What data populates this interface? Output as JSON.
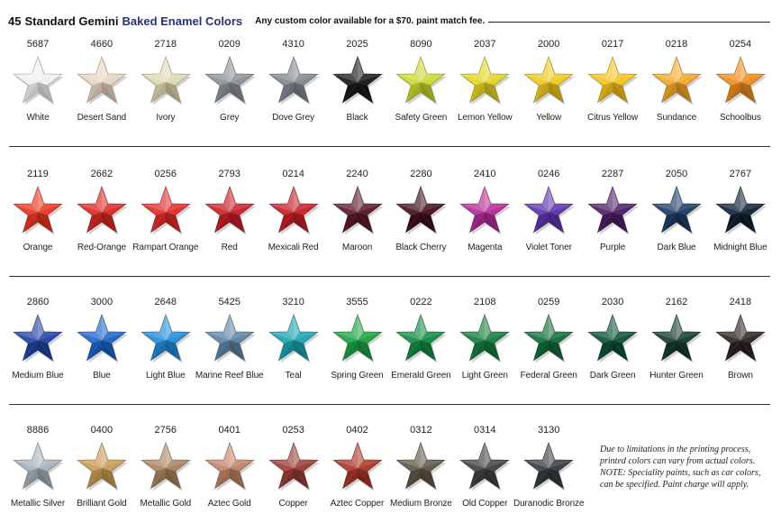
{
  "header": {
    "count": "45",
    "brand": "Standard Gemini",
    "title": "Baked Enamel Colors",
    "note": "Any custom color available for a $70. paint match fee."
  },
  "rows": [
    [
      {
        "code": "5687",
        "name": "White",
        "color": "#eef0f1"
      },
      {
        "code": "4660",
        "name": "Desert Sand",
        "color": "#e6d6c2"
      },
      {
        "code": "2718",
        "name": "Ivory",
        "color": "#ddd8ae"
      },
      {
        "code": "0209",
        "name": "Grey",
        "color": "#8a9096"
      },
      {
        "code": "4310",
        "name": "Dove Grey",
        "color": "#7f868d"
      },
      {
        "code": "2025",
        "name": "Black",
        "color": "#16161a"
      },
      {
        "code": "8090",
        "name": "Safety Green",
        "color": "#c8d82a"
      },
      {
        "code": "2037",
        "name": "Lemon Yellow",
        "color": "#e4d424"
      },
      {
        "code": "2000",
        "name": "Yellow",
        "color": "#f0c81e"
      },
      {
        "code": "0217",
        "name": "Citrus Yellow",
        "color": "#f6c21c"
      },
      {
        "code": "0218",
        "name": "Sundance",
        "color": "#f2a824"
      },
      {
        "code": "0254",
        "name": "Schoolbus",
        "color": "#ee8a18"
      }
    ],
    [
      {
        "code": "2119",
        "name": "Orange",
        "color": "#e8341e"
      },
      {
        "code": "2662",
        "name": "Red-Orange",
        "color": "#d92622"
      },
      {
        "code": "0256",
        "name": "Rampart Orange",
        "color": "#e02a26"
      },
      {
        "code": "2793",
        "name": "Red",
        "color": "#c81c26"
      },
      {
        "code": "0214",
        "name": "Mexicali Red",
        "color": "#c41c22"
      },
      {
        "code": "2240",
        "name": "Maroon",
        "color": "#581826"
      },
      {
        "code": "2280",
        "name": "Black Cherry",
        "color": "#3e0e1a"
      },
      {
        "code": "2410",
        "name": "Magenta",
        "color": "#b42896"
      },
      {
        "code": "0246",
        "name": "Violet Toner",
        "color": "#5a32aa"
      },
      {
        "code": "2287",
        "name": "Purple",
        "color": "#4a1c66"
      },
      {
        "code": "2050",
        "name": "Dark Blue",
        "color": "#1a3a62"
      },
      {
        "code": "2767",
        "name": "Midnight Blue",
        "color": "#0e1e32"
      }
    ],
    [
      {
        "code": "2860",
        "name": "Medium Blue",
        "color": "#1e40a2"
      },
      {
        "code": "3000",
        "name": "Blue",
        "color": "#1a62c8"
      },
      {
        "code": "2648",
        "name": "Light Blue",
        "color": "#1e8ad8"
      },
      {
        "code": "5425",
        "name": "Marine Reef Blue",
        "color": "#5a82a2"
      },
      {
        "code": "3210",
        "name": "Teal",
        "color": "#18a2b2"
      },
      {
        "code": "3555",
        "name": "Spring Green",
        "color": "#18a040"
      },
      {
        "code": "0222",
        "name": "Emerald Green",
        "color": "#108a42"
      },
      {
        "code": "2108",
        "name": "Light Green",
        "color": "#147a3c"
      },
      {
        "code": "0259",
        "name": "Federal Green",
        "color": "#0e6a38"
      },
      {
        "code": "2030",
        "name": "Dark Green",
        "color": "#0a4e34"
      },
      {
        "code": "2162",
        "name": "Hunter Green",
        "color": "#123a2a"
      },
      {
        "code": "2418",
        "name": "Brown",
        "color": "#2a2220"
      }
    ],
    [
      {
        "code": "8886",
        "name": "Metallic Silver",
        "color": "#a6b0ba"
      },
      {
        "code": "0400",
        "name": "Brilliant Gold",
        "color": "#c89a52"
      },
      {
        "code": "2756",
        "name": "Metallic Gold",
        "color": "#a8825c"
      },
      {
        "code": "0401",
        "name": "Aztec Gold",
        "color": "#c08264"
      },
      {
        "code": "0253",
        "name": "Copper",
        "color": "#9a3a32"
      },
      {
        "code": "0402",
        "name": "Aztec Copper",
        "color": "#a83424"
      },
      {
        "code": "0312",
        "name": "Medium Bronze",
        "color": "#5e5446"
      },
      {
        "code": "0314",
        "name": "Old Copper",
        "color": "#3c3e40"
      },
      {
        "code": "3130",
        "name": "Duranodic Bronze",
        "color": "#333a3c"
      }
    ]
  ],
  "disclaimer": {
    "line1": "Due to limitations in the printing process,",
    "line2": "printed colors can vary from actual colors.",
    "line3": "NOTE: Speciality paints, such as car colors,",
    "line4": "can be specified.  Paint charge will apply."
  }
}
